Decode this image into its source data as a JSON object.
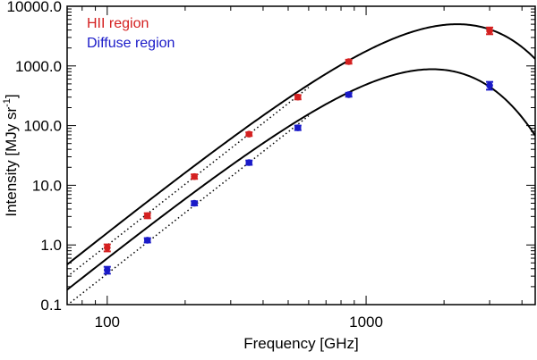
{
  "chart_data": {
    "type": "scatter",
    "title": "",
    "xlabel": "Frequency [GHz]",
    "ylabel_main": "Intensity [MJy sr",
    "ylabel_sup": "-1",
    "ylabel_close": "]",
    "xscale": "log",
    "yscale": "log",
    "xlim": [
      70,
      4500
    ],
    "ylim": [
      0.1,
      10000
    ],
    "grid": false,
    "legend_position": "top-left",
    "x_ticks": [
      {
        "value": 100,
        "label": "100"
      },
      {
        "value": 1000,
        "label": "1000"
      }
    ],
    "y_ticks": [
      {
        "value": 0.1,
        "label": "0.1"
      },
      {
        "value": 1,
        "label": "1.0"
      },
      {
        "value": 10,
        "label": "10.0"
      },
      {
        "value": 100,
        "label": "100.0"
      },
      {
        "value": 1000,
        "label": "1000.0"
      },
      {
        "value": 10000,
        "label": "10000.0"
      }
    ],
    "series": [
      {
        "name": "HII region",
        "color": "#d42020",
        "x": [
          100,
          143,
          217,
          353,
          545,
          857,
          3000
        ],
        "y": [
          0.9,
          3.1,
          14,
          72,
          300,
          1180,
          3900
        ],
        "err": [
          0.12,
          0.3,
          1.2,
          5,
          25,
          90,
          500
        ],
        "model_peak_freq": 2250,
        "model_peak_value": 5000,
        "model_beta": 1.5,
        "model_low_slope": 3.4
      },
      {
        "name": "Diffuse region",
        "color": "#1a1ac8",
        "x": [
          100,
          143,
          217,
          353,
          545,
          857,
          3000
        ],
        "y": [
          0.38,
          1.2,
          5.0,
          24,
          92,
          330,
          470
        ],
        "err": [
          0.05,
          0.1,
          0.4,
          2,
          8,
          25,
          70
        ],
        "model_peak_freq": 1800,
        "model_peak_value": 880,
        "model_beta": 1.5,
        "model_low_slope": 3.4
      }
    ]
  }
}
